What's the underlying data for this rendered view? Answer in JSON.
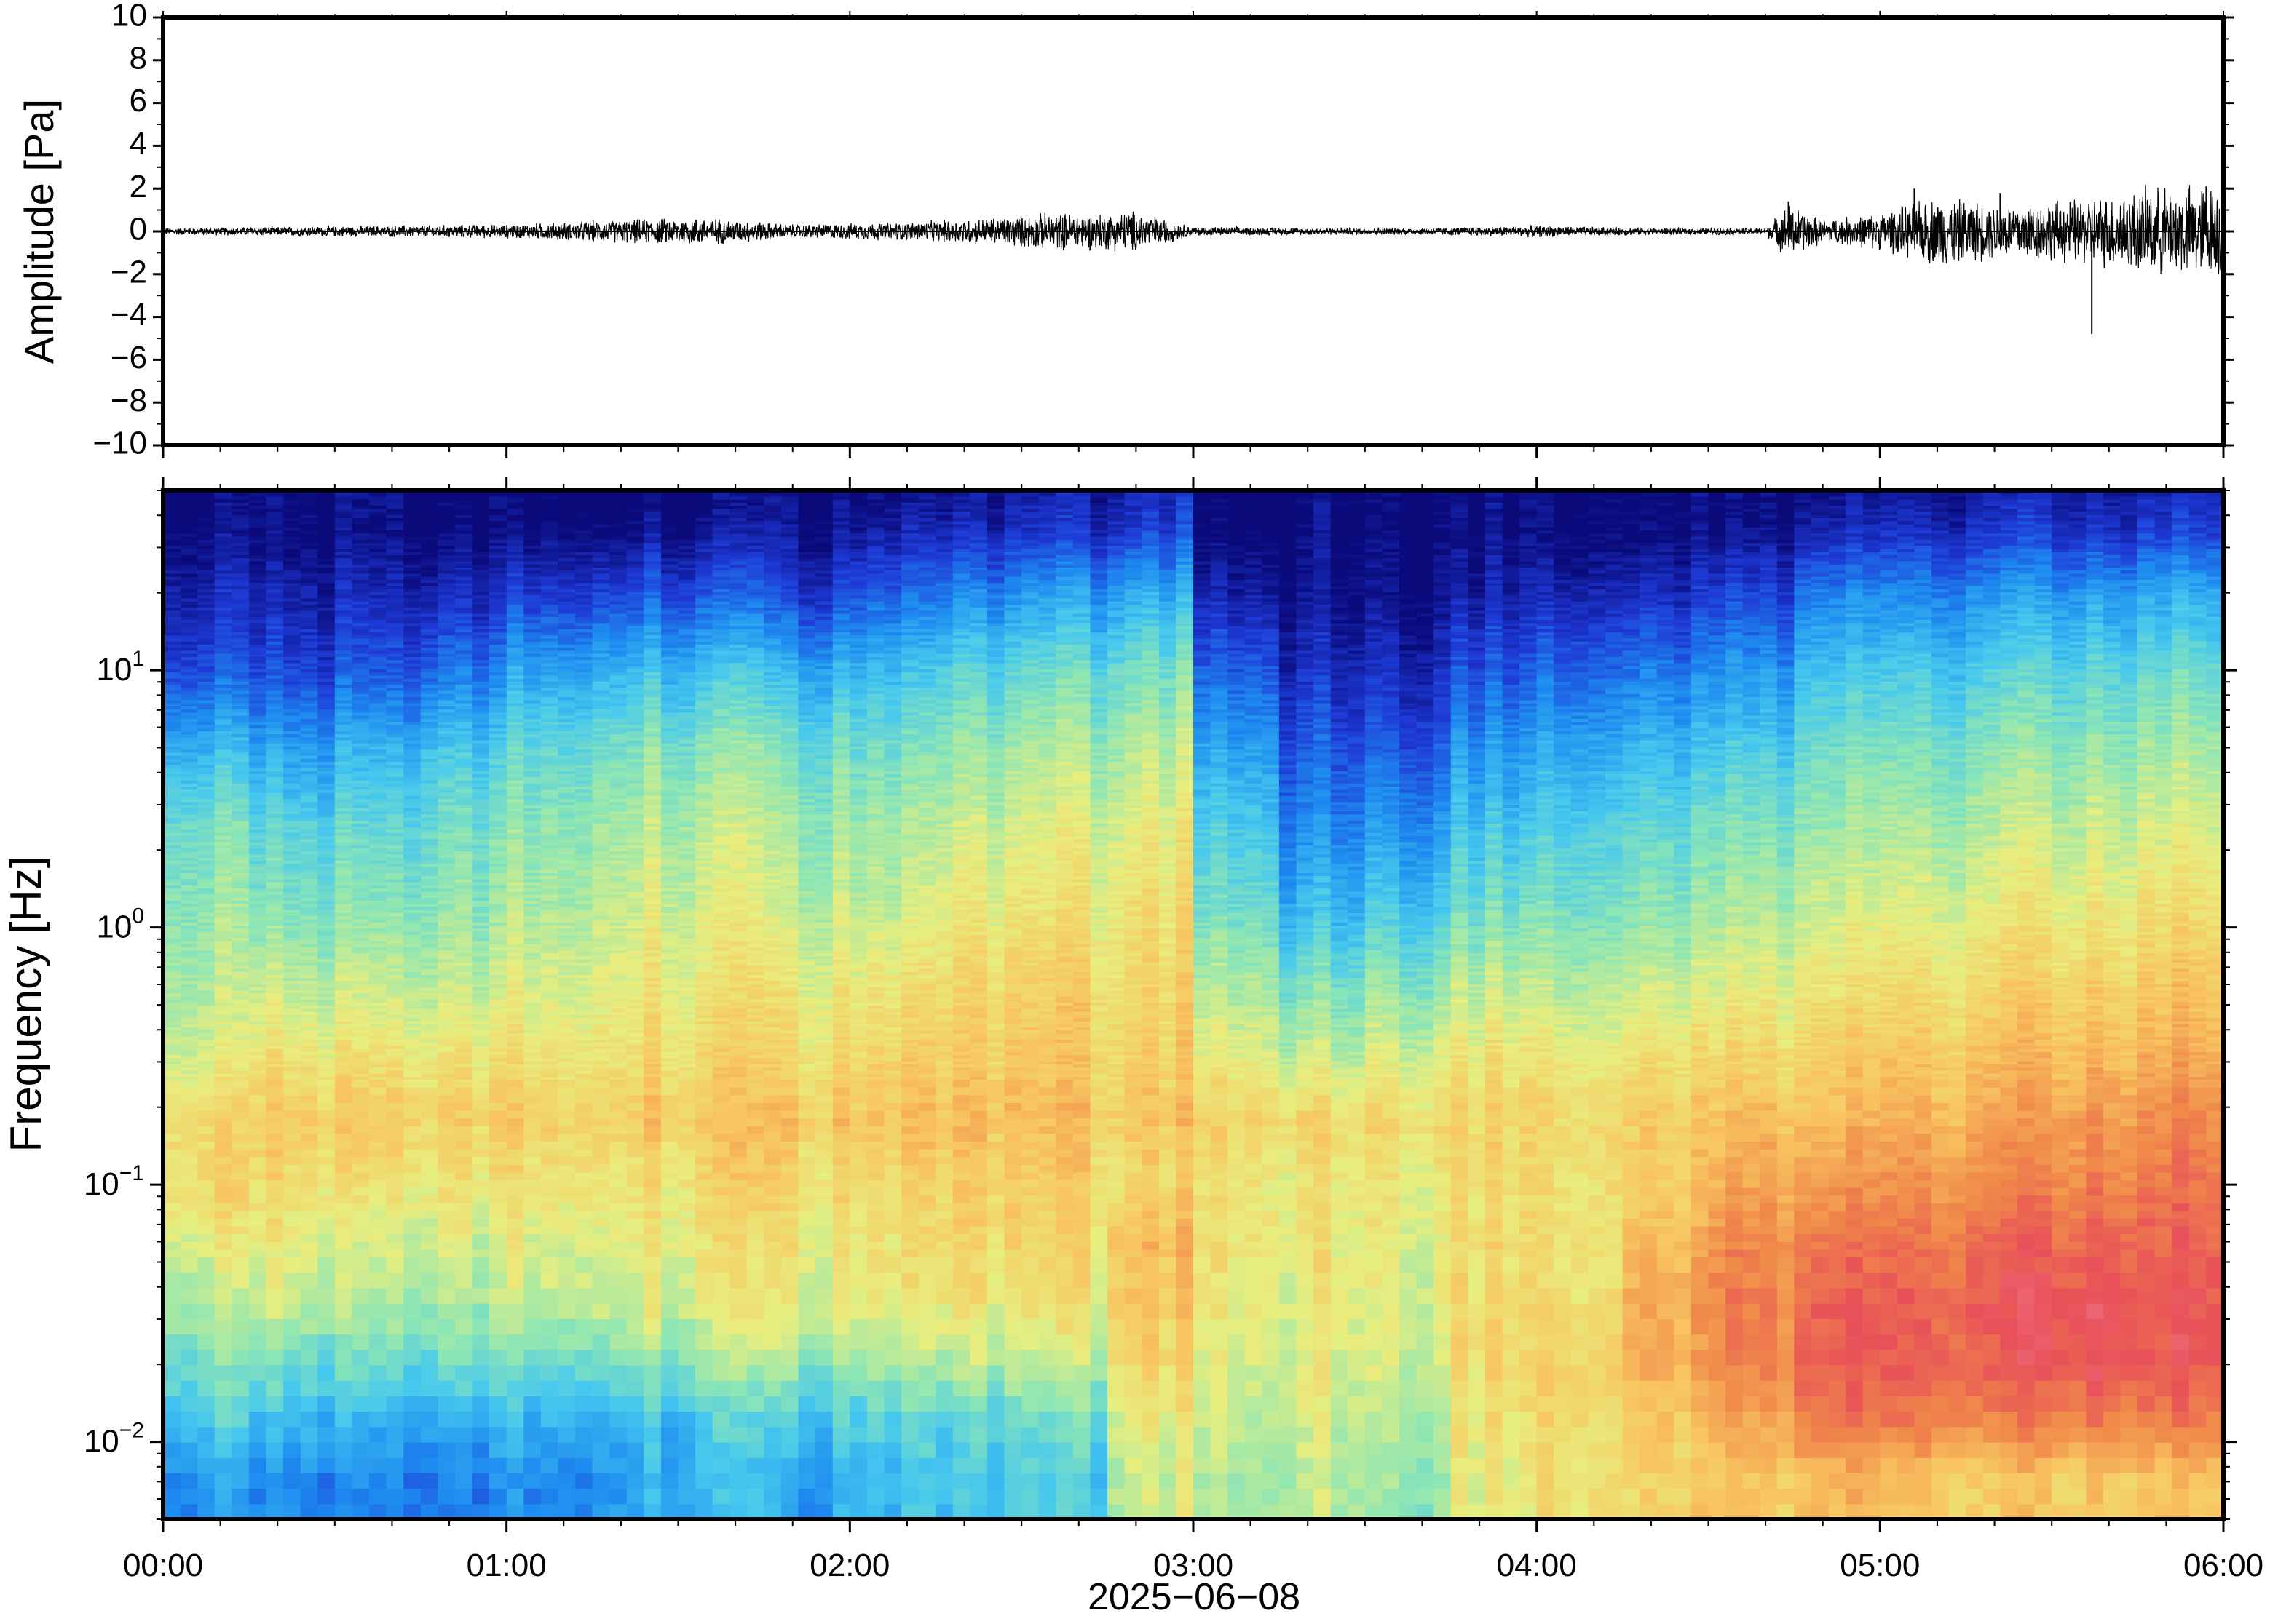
{
  "chart_data": [
    {
      "type": "line",
      "panel": "waveform",
      "ylabel": "Amplitude [Pa]",
      "ylim": [
        -10,
        10
      ],
      "yticks": [
        "10",
        "8",
        "6",
        "4",
        "2",
        "0",
        "−2",
        "−4",
        "−6",
        "−8",
        "−10"
      ],
      "xlim": [
        "00:00",
        "06:00"
      ],
      "grid": false,
      "series": [
        {
          "x": [
            "00:00",
            "00:20",
            "00:40",
            "01:00",
            "01:20",
            "01:35",
            "01:50",
            "02:10",
            "02:25",
            "02:35",
            "02:45",
            "02:50",
            "03:00",
            "03:20",
            "03:40",
            "04:00",
            "04:20",
            "04:40",
            "04:44",
            "04:50",
            "05:00",
            "05:10",
            "05:20",
            "05:30",
            "05:38",
            "05:45",
            "05:55"
          ],
          "envelope_pa": [
            0.15,
            0.2,
            0.25,
            0.3,
            0.5,
            0.6,
            0.3,
            0.4,
            0.6,
            0.8,
            0.8,
            0.9,
            0.2,
            0.15,
            0.15,
            0.25,
            0.15,
            0.15,
            1.2,
            0.5,
            0.8,
            1.5,
            1.2,
            1.3,
            1.5,
            1.8,
            2.0
          ]
        }
      ],
      "spikes": [
        {
          "x": "04:44",
          "y": 1.4
        },
        {
          "x": "05:06",
          "y": 2.0
        },
        {
          "x": "05:21",
          "y": 1.8
        },
        {
          "x": "05:37",
          "y": -4.8
        },
        {
          "x": "05:57",
          "y": 2.1
        }
      ]
    },
    {
      "type": "heatmap",
      "panel": "spectrogram",
      "ylabel": "Frequency [Hz]",
      "yscale": "log",
      "ylim_hz": [
        0.005,
        50
      ],
      "yticks": [
        {
          "base": "10",
          "exp": "1",
          "value": 10
        },
        {
          "base": "10",
          "exp": "0",
          "value": 1
        },
        {
          "base": "10",
          "exp": "−1",
          "value": 0.1
        },
        {
          "base": "10",
          "exp": "−2",
          "value": 0.01
        }
      ],
      "xlabel": "2025−06−08",
      "xticks": [
        "00:00",
        "01:00",
        "02:00",
        "03:00",
        "04:00",
        "05:00",
        "06:00"
      ],
      "xlim": [
        "00:00",
        "06:00"
      ],
      "colormap": "jet",
      "colormap_stops": [
        "#0a0a7a",
        "#1e3ad6",
        "#1e8cf0",
        "#46c8ee",
        "#8ee6b4",
        "#e8ee7e",
        "#f8c460",
        "#f08a4a",
        "#e85058",
        "#f48aa0"
      ],
      "time_segments_min": [
        0,
        15,
        30,
        45,
        60,
        75,
        90,
        105,
        120,
        135,
        150,
        165,
        180,
        195,
        210,
        225,
        240,
        255,
        270,
        285,
        300,
        315,
        330,
        345,
        360
      ],
      "freq_rows_hz": [
        0.007,
        0.012,
        0.02,
        0.035,
        0.06,
        0.1,
        0.18,
        0.3,
        0.6,
        1.2,
        2.5,
        5,
        10,
        20,
        35
      ],
      "levels": [
        [
          0.25,
          0.35,
          0.42,
          0.5,
          0.56,
          0.62,
          0.62,
          0.55,
          0.5,
          0.46,
          0.42,
          0.3,
          0.15,
          0.07,
          0.02
        ],
        [
          0.22,
          0.3,
          0.4,
          0.5,
          0.55,
          0.6,
          0.64,
          0.58,
          0.5,
          0.42,
          0.36,
          0.25,
          0.12,
          0.05,
          0.0
        ],
        [
          0.2,
          0.28,
          0.38,
          0.48,
          0.52,
          0.58,
          0.64,
          0.58,
          0.5,
          0.43,
          0.37,
          0.28,
          0.14,
          0.06,
          0.0
        ],
        [
          0.22,
          0.3,
          0.4,
          0.5,
          0.54,
          0.6,
          0.64,
          0.6,
          0.52,
          0.46,
          0.42,
          0.34,
          0.2,
          0.08,
          0.01
        ],
        [
          0.24,
          0.3,
          0.42,
          0.52,
          0.56,
          0.6,
          0.65,
          0.6,
          0.55,
          0.5,
          0.46,
          0.4,
          0.28,
          0.12,
          0.02
        ],
        [
          0.28,
          0.32,
          0.44,
          0.55,
          0.58,
          0.6,
          0.66,
          0.62,
          0.58,
          0.54,
          0.5,
          0.44,
          0.32,
          0.15,
          0.03
        ],
        [
          0.3,
          0.35,
          0.46,
          0.56,
          0.58,
          0.62,
          0.66,
          0.62,
          0.58,
          0.54,
          0.5,
          0.44,
          0.32,
          0.15,
          0.03
        ],
        [
          0.26,
          0.33,
          0.45,
          0.55,
          0.57,
          0.6,
          0.65,
          0.6,
          0.56,
          0.5,
          0.46,
          0.4,
          0.28,
          0.1,
          0.02
        ],
        [
          0.3,
          0.35,
          0.46,
          0.56,
          0.58,
          0.6,
          0.66,
          0.62,
          0.57,
          0.5,
          0.46,
          0.4,
          0.3,
          0.15,
          0.04
        ],
        [
          0.32,
          0.36,
          0.48,
          0.57,
          0.6,
          0.62,
          0.66,
          0.63,
          0.6,
          0.55,
          0.5,
          0.44,
          0.35,
          0.2,
          0.06
        ],
        [
          0.34,
          0.38,
          0.5,
          0.58,
          0.6,
          0.62,
          0.66,
          0.64,
          0.62,
          0.57,
          0.53,
          0.47,
          0.38,
          0.24,
          0.08
        ],
        [
          0.52,
          0.56,
          0.62,
          0.66,
          0.68,
          0.62,
          0.66,
          0.64,
          0.62,
          0.6,
          0.56,
          0.5,
          0.42,
          0.28,
          0.12
        ],
        [
          0.5,
          0.52,
          0.55,
          0.58,
          0.6,
          0.6,
          0.64,
          0.58,
          0.5,
          0.42,
          0.36,
          0.28,
          0.18,
          0.07,
          0.0
        ],
        [
          0.5,
          0.52,
          0.55,
          0.56,
          0.58,
          0.58,
          0.62,
          0.52,
          0.42,
          0.3,
          0.22,
          0.15,
          0.08,
          0.02,
          0.0
        ],
        [
          0.46,
          0.5,
          0.53,
          0.55,
          0.56,
          0.58,
          0.62,
          0.55,
          0.45,
          0.34,
          0.25,
          0.16,
          0.08,
          0.02,
          0.0
        ],
        [
          0.55,
          0.58,
          0.6,
          0.6,
          0.6,
          0.6,
          0.62,
          0.58,
          0.5,
          0.4,
          0.32,
          0.24,
          0.14,
          0.05,
          0.0
        ],
        [
          0.6,
          0.62,
          0.64,
          0.6,
          0.6,
          0.6,
          0.62,
          0.58,
          0.5,
          0.42,
          0.36,
          0.28,
          0.18,
          0.07,
          0.0
        ],
        [
          0.62,
          0.66,
          0.7,
          0.72,
          0.68,
          0.64,
          0.64,
          0.6,
          0.52,
          0.44,
          0.38,
          0.3,
          0.2,
          0.08,
          0.0
        ],
        [
          0.66,
          0.72,
          0.78,
          0.8,
          0.78,
          0.72,
          0.68,
          0.62,
          0.55,
          0.48,
          0.42,
          0.34,
          0.24,
          0.12,
          0.02
        ],
        [
          0.68,
          0.8,
          0.86,
          0.85,
          0.8,
          0.74,
          0.68,
          0.64,
          0.58,
          0.52,
          0.46,
          0.4,
          0.32,
          0.2,
          0.06
        ],
        [
          0.66,
          0.8,
          0.86,
          0.86,
          0.82,
          0.76,
          0.7,
          0.66,
          0.6,
          0.54,
          0.48,
          0.42,
          0.34,
          0.22,
          0.08
        ],
        [
          0.64,
          0.78,
          0.86,
          0.88,
          0.84,
          0.78,
          0.72,
          0.68,
          0.62,
          0.56,
          0.5,
          0.44,
          0.36,
          0.24,
          0.1
        ],
        [
          0.66,
          0.8,
          0.9,
          0.9,
          0.86,
          0.8,
          0.76,
          0.7,
          0.64,
          0.58,
          0.52,
          0.46,
          0.38,
          0.26,
          0.1
        ],
        [
          0.66,
          0.8,
          0.88,
          0.88,
          0.86,
          0.82,
          0.78,
          0.72,
          0.66,
          0.6,
          0.54,
          0.48,
          0.4,
          0.28,
          0.12
        ]
      ]
    }
  ]
}
